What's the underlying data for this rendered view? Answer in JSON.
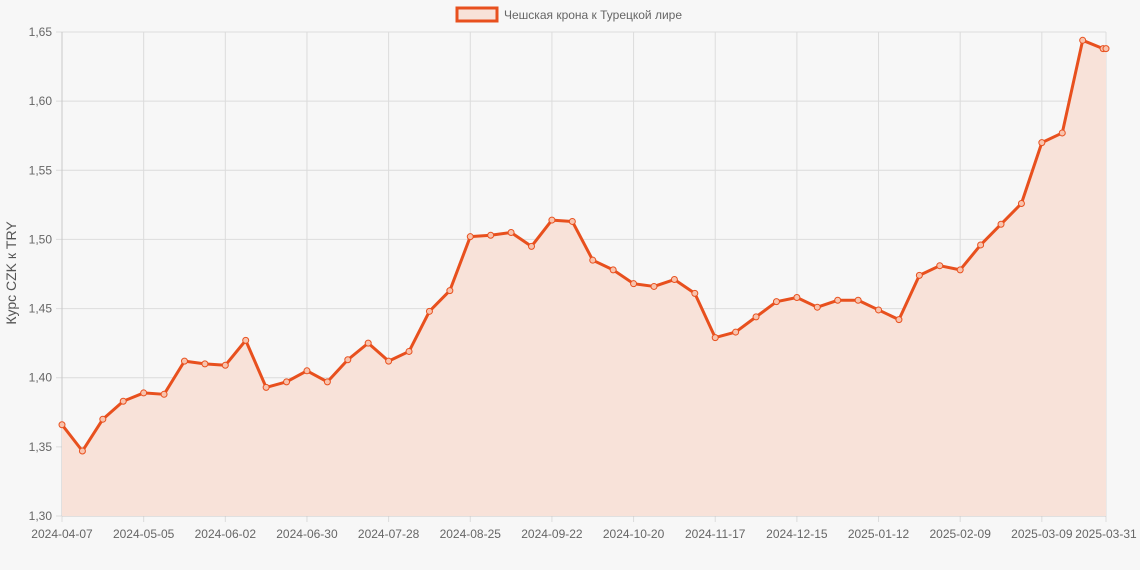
{
  "colors": {
    "line": "#e8501e",
    "fill": "#f8e2d9",
    "point_fill": "#f8c3ad"
  },
  "chart_data": {
    "type": "area",
    "legend": {
      "position": "top-center",
      "label": "Чешская крона к Турецкой лире"
    },
    "ylabel": "Курс CZK к TRY",
    "xlabel": "",
    "grid": true,
    "ylim": [
      1.3,
      1.65
    ],
    "y_ticks": [
      "1,30",
      "1,35",
      "1,40",
      "1,45",
      "1,50",
      "1,55",
      "1,60",
      "1,65"
    ],
    "x_tick_labels": [
      "2024-04-07",
      "2024-05-05",
      "2024-06-02",
      "2024-06-30",
      "2024-07-28",
      "2024-08-25",
      "2024-09-22",
      "2024-10-20",
      "2024-11-17",
      "2024-12-15",
      "2025-01-12",
      "2025-02-09",
      "2025-03-09",
      "2025-03-31"
    ],
    "series": [
      {
        "name": "Чешская крона к Турецкой лире",
        "x": [
          "2024-04-07",
          "2024-04-14",
          "2024-04-21",
          "2024-04-28",
          "2024-05-05",
          "2024-05-12",
          "2024-05-19",
          "2024-05-26",
          "2024-06-02",
          "2024-06-09",
          "2024-06-16",
          "2024-06-23",
          "2024-06-30",
          "2024-07-07",
          "2024-07-14",
          "2024-07-21",
          "2024-07-28",
          "2024-08-04",
          "2024-08-11",
          "2024-08-18",
          "2024-08-25",
          "2024-09-01",
          "2024-09-08",
          "2024-09-15",
          "2024-09-22",
          "2024-09-29",
          "2024-10-06",
          "2024-10-13",
          "2024-10-20",
          "2024-10-27",
          "2024-11-03",
          "2024-11-10",
          "2024-11-17",
          "2024-11-24",
          "2024-12-01",
          "2024-12-08",
          "2024-12-15",
          "2024-12-22",
          "2024-12-29",
          "2025-01-05",
          "2025-01-12",
          "2025-01-19",
          "2025-01-26",
          "2025-02-02",
          "2025-02-09",
          "2025-02-16",
          "2025-02-23",
          "2025-03-02",
          "2025-03-09",
          "2025-03-16",
          "2025-03-23",
          "2025-03-30",
          "2025-03-31"
        ],
        "values": [
          1.366,
          1.347,
          1.37,
          1.383,
          1.389,
          1.388,
          1.412,
          1.41,
          1.409,
          1.427,
          1.393,
          1.397,
          1.405,
          1.397,
          1.413,
          1.425,
          1.412,
          1.419,
          1.448,
          1.463,
          1.502,
          1.503,
          1.505,
          1.495,
          1.514,
          1.513,
          1.485,
          1.478,
          1.468,
          1.466,
          1.471,
          1.461,
          1.429,
          1.433,
          1.444,
          1.455,
          1.458,
          1.451,
          1.456,
          1.456,
          1.449,
          1.442,
          1.474,
          1.481,
          1.478,
          1.496,
          1.511,
          1.526,
          1.57,
          1.577,
          1.644,
          1.638,
          1.638
        ]
      }
    ]
  }
}
